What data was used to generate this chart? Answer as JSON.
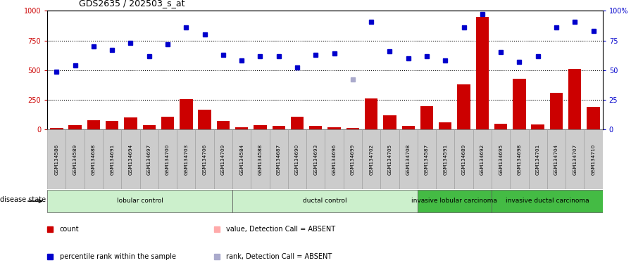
{
  "title": "GDS2635 / 202503_s_at",
  "samples": [
    "GSM134586",
    "GSM134589",
    "GSM134688",
    "GSM134691",
    "GSM134694",
    "GSM134697",
    "GSM134700",
    "GSM134703",
    "GSM134706",
    "GSM134709",
    "GSM134584",
    "GSM134588",
    "GSM134687",
    "GSM134690",
    "GSM134693",
    "GSM134696",
    "GSM134699",
    "GSM134702",
    "GSM134705",
    "GSM134708",
    "GSM134587",
    "GSM134591",
    "GSM134689",
    "GSM134692",
    "GSM134695",
    "GSM134698",
    "GSM134701",
    "GSM134704",
    "GSM134707",
    "GSM134710"
  ],
  "counts": [
    15,
    40,
    80,
    75,
    100,
    35,
    110,
    255,
    165,
    75,
    20,
    40,
    30,
    110,
    30,
    20,
    15,
    260,
    120,
    30,
    200,
    60,
    380,
    950,
    50,
    430,
    45,
    310,
    510,
    190
  ],
  "percentile_ranks": [
    49,
    54,
    70,
    67,
    73,
    62,
    72,
    86,
    80,
    63,
    58,
    62,
    62,
    52,
    63,
    64,
    42,
    91,
    66,
    60,
    62,
    58,
    86,
    97,
    65,
    57,
    62,
    86,
    91,
    83
  ],
  "absent_rank_indices": [
    16
  ],
  "disease_groups": [
    {
      "label": "lobular control",
      "start": 0,
      "end": 10,
      "color": "#ccf0cc"
    },
    {
      "label": "ductal control",
      "start": 10,
      "end": 20,
      "color": "#ccf0cc"
    },
    {
      "label": "invasive lobular carcinoma",
      "start": 20,
      "end": 24,
      "color": "#44bb44"
    },
    {
      "label": "invasive ductal carcinoma",
      "start": 24,
      "end": 30,
      "color": "#44bb44"
    }
  ],
  "bar_color": "#cc0000",
  "dot_color": "#0000cc",
  "absent_dot_color": "#aaaacc",
  "ylim_left": [
    0,
    1000
  ],
  "yticks_left": [
    0,
    250,
    500,
    750,
    1000
  ],
  "ytick_labels_left": [
    "0",
    "250",
    "500",
    "750",
    "1000"
  ],
  "ytick_labels_right": [
    "0",
    "25",
    "50",
    "75",
    "100%"
  ],
  "hlines": [
    250,
    500,
    750
  ],
  "legend_items": [
    {
      "label": "count",
      "color": "#cc0000"
    },
    {
      "label": "percentile rank within the sample",
      "color": "#0000cc"
    },
    {
      "label": "value, Detection Call = ABSENT",
      "color": "#ffaaaa"
    },
    {
      "label": "rank, Detection Call = ABSENT",
      "color": "#aaaacc"
    }
  ]
}
